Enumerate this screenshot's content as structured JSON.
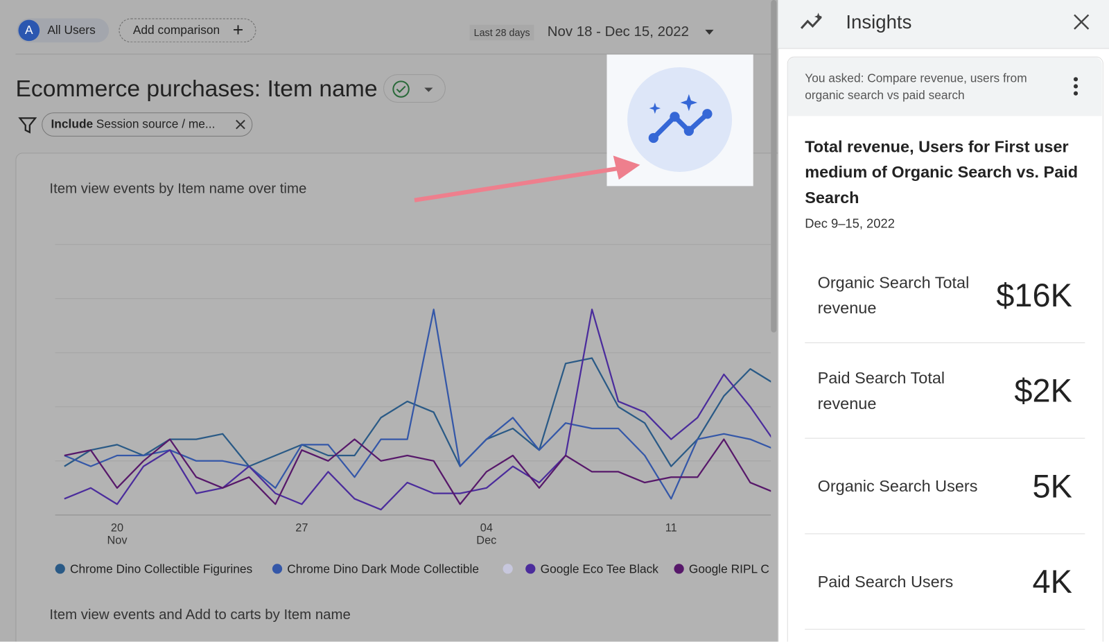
{
  "header": {
    "avatar": "A",
    "segment": "All Users",
    "add_comparison": "Add comparison",
    "range_label": "Last 28 days",
    "date_range": "Nov 18 - Dec 15, 2022"
  },
  "report": {
    "title": "Ecommerce purchases: Item name",
    "filter_keyword": "Include",
    "filter_text": "Session source / me..."
  },
  "chart_data": {
    "type": "line",
    "title": "Item view events by Item name over time",
    "categories": [
      null,
      null,
      "20\nNov",
      null,
      null,
      null,
      null,
      null,
      null,
      "27",
      null,
      null,
      null,
      null,
      null,
      null,
      "04\nDec",
      null,
      null,
      null,
      null,
      null,
      null,
      "11",
      null,
      null,
      null,
      null
    ],
    "ylim": [
      0,
      5.4
    ],
    "grid_lines": [
      0,
      1,
      2,
      3,
      4,
      5
    ],
    "grid": true,
    "series": [
      {
        "name": "Chrome Dino Collectible Figurines",
        "color": "#2a5a86",
        "values": [
          0.9,
          1.2,
          1.3,
          1.1,
          1.4,
          1.4,
          1.5,
          0.9,
          1.1,
          1.3,
          1.1,
          1.1,
          1.8,
          2.1,
          1.9,
          0.9,
          1.4,
          1.6,
          1.2,
          2.8,
          2.9,
          2.0,
          1.7,
          0.9,
          1.4,
          2.2,
          2.7,
          2.4
        ]
      },
      {
        "name": "Chrome Dino Dark Mode Collectible",
        "color": "#3457a8",
        "values": [
          1.1,
          0.9,
          1.1,
          1.1,
          1.2,
          1.0,
          1.0,
          0.9,
          0.5,
          1.3,
          1.3,
          0.7,
          1.4,
          1.4,
          3.8,
          0.9,
          1.4,
          1.8,
          1.2,
          1.7,
          1.6,
          1.6,
          1.1,
          0.3,
          1.4,
          1.5,
          1.4,
          1.2
        ]
      },
      {
        "name": "Google Eco Tee Black",
        "color": "#4b2c9c",
        "values": [
          0.3,
          0.5,
          0.2,
          0.9,
          1.2,
          0.4,
          0.5,
          0.9,
          0.4,
          0.2,
          0.8,
          0.3,
          0.1,
          0.6,
          0.4,
          0.4,
          0.5,
          0.9,
          0.6,
          1.1,
          3.8,
          2.1,
          1.9,
          1.4,
          1.8,
          2.6,
          2.0,
          1.3
        ]
      },
      {
        "name": "Google RIPL C",
        "color": "#57186a",
        "values": [
          1.1,
          1.2,
          0.5,
          1.0,
          1.4,
          0.7,
          0.5,
          0.7,
          0.2,
          1.2,
          1.0,
          1.4,
          1.0,
          1.1,
          1.0,
          0.2,
          0.8,
          1.1,
          0.5,
          1.1,
          0.8,
          0.8,
          0.6,
          0.7,
          0.7,
          1.4,
          0.6,
          0.4
        ]
      }
    ]
  },
  "next_chart_title": "Item view events and Add to carts by Item name",
  "insights": {
    "title": "Insights",
    "question": "You asked: Compare revenue, users from organic search vs paid search",
    "result_title": "Total revenue, Users for First user medium of Organic Search vs. Paid Search",
    "period": "Dec 9–15, 2022",
    "metrics": [
      {
        "label": "Organic Search Total revenue",
        "value": "$16K"
      },
      {
        "label": "Paid Search Total revenue",
        "value": "$2K"
      },
      {
        "label": "Organic Search Users",
        "value": "5K"
      },
      {
        "label": "Paid Search Users",
        "value": "4K"
      }
    ]
  }
}
